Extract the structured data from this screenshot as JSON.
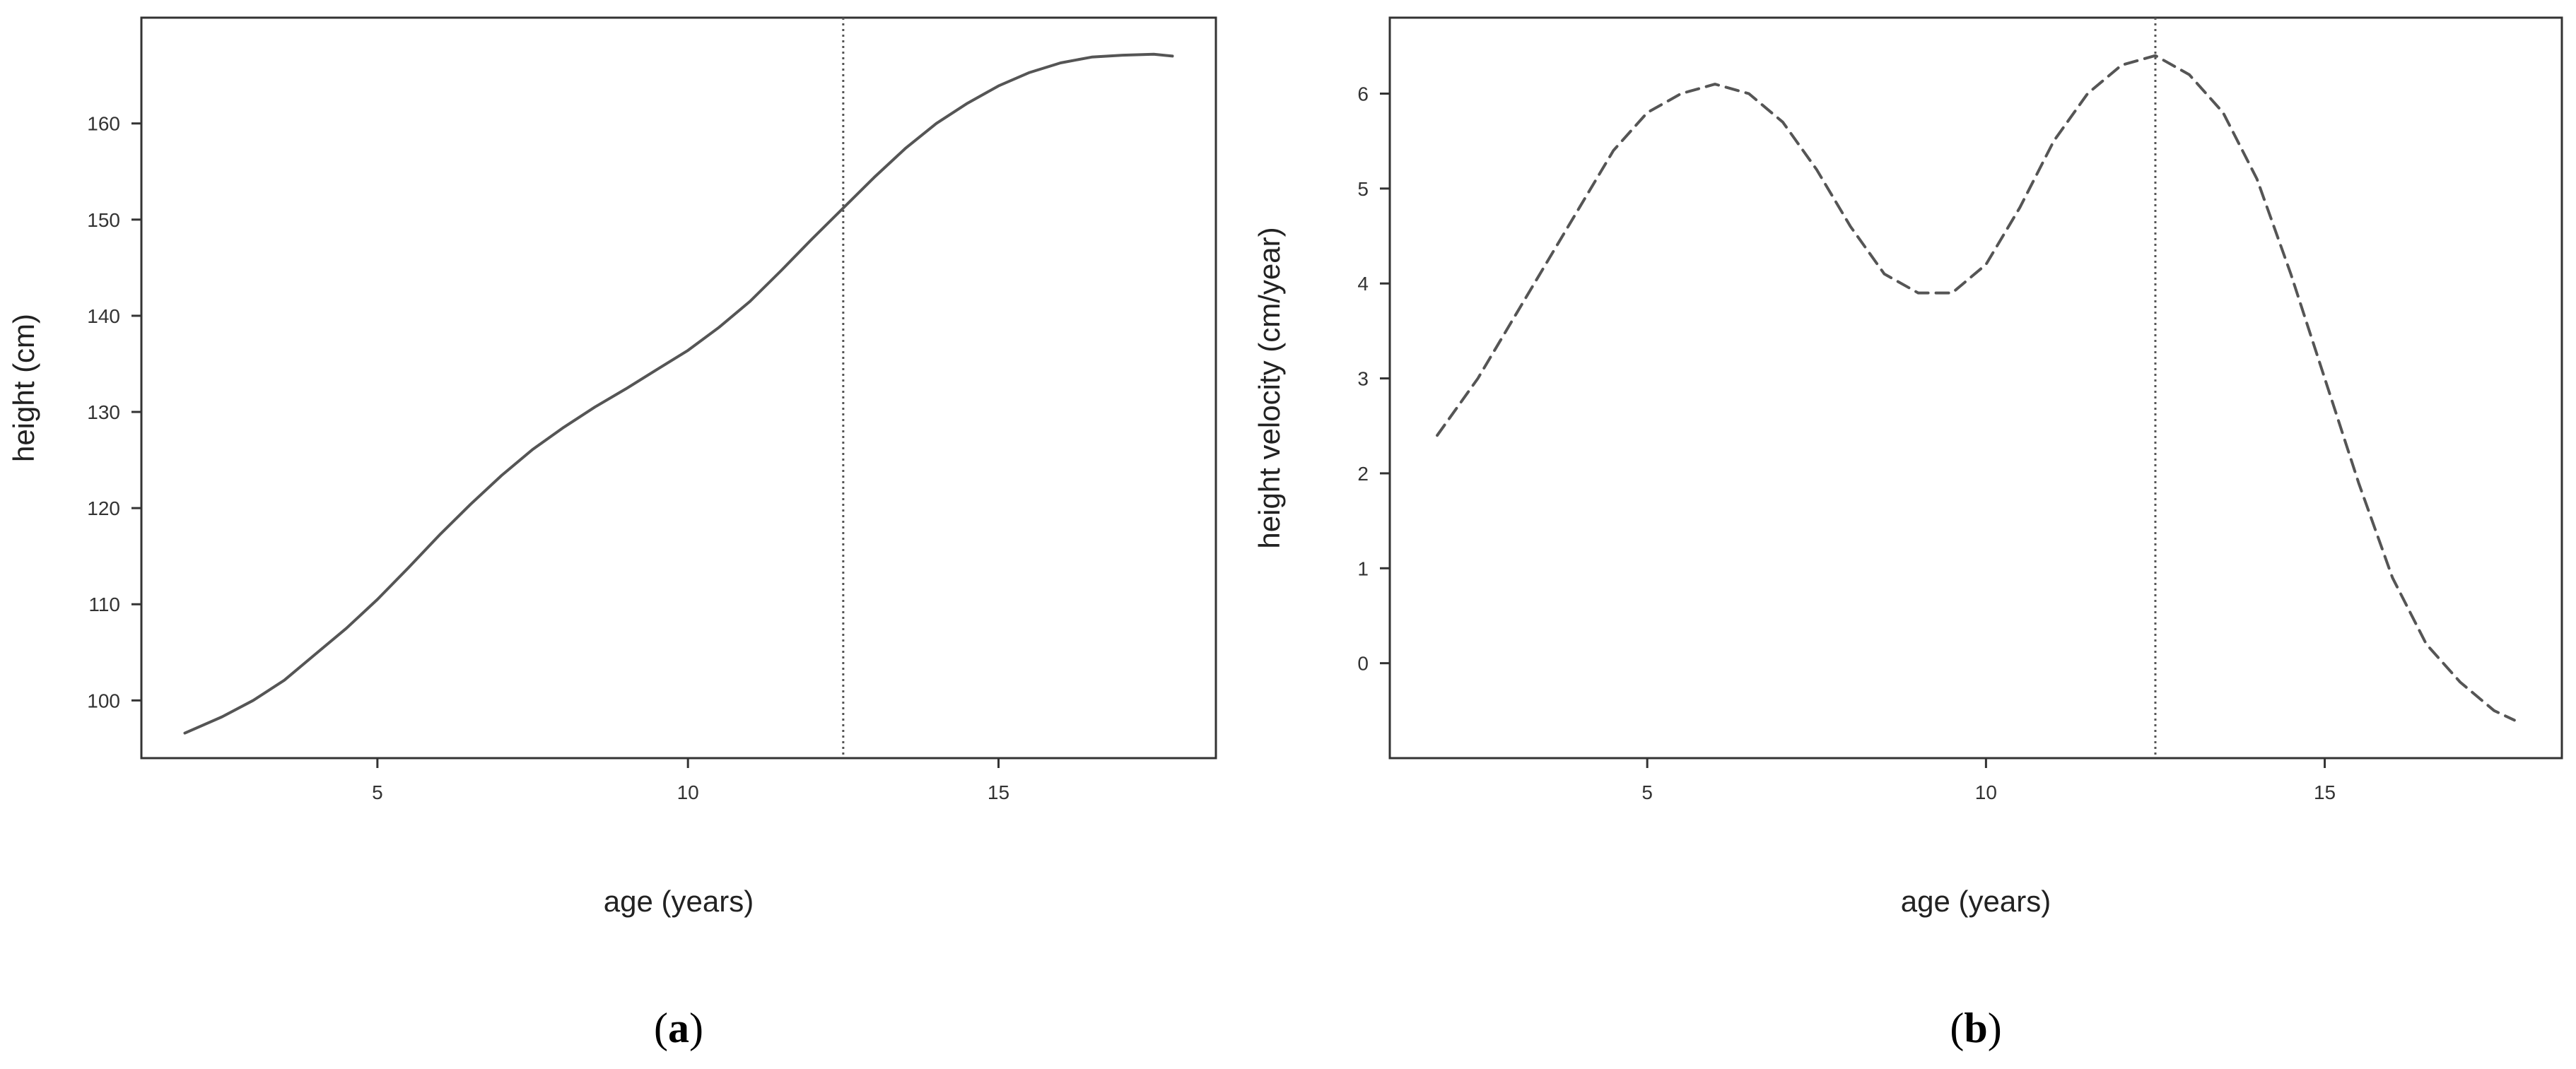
{
  "colors": {
    "line": "#555555",
    "frame": "#333333",
    "marker": "#555555",
    "background": "#ffffff"
  },
  "chart_data": [
    {
      "panel_label": "a",
      "type": "line",
      "xlabel": "age (years)",
      "ylabel": "height (cm)",
      "xlim": [
        1.2,
        18.5
      ],
      "ylim": [
        94,
        171
      ],
      "xticks": [
        5,
        10,
        15
      ],
      "yticks": [
        100,
        110,
        120,
        130,
        140,
        150,
        160
      ],
      "line_style": "solid",
      "grid": false,
      "vline_x": 12.5,
      "vline_style": "dotted",
      "series": [
        {
          "x": [
            1.9,
            2.5,
            3.0,
            3.5,
            4.0,
            4.5,
            5.0,
            5.5,
            6.0,
            6.5,
            7.0,
            7.5,
            8.0,
            8.5,
            9.0,
            9.5,
            10.0,
            10.5,
            11.0,
            11.5,
            12.0,
            12.5,
            13.0,
            13.5,
            14.0,
            14.5,
            15.0,
            15.5,
            16.0,
            16.5,
            17.0,
            17.5,
            17.8
          ],
          "y": [
            96.6,
            98.3,
            100.0,
            102.1,
            104.8,
            107.5,
            110.5,
            113.8,
            117.2,
            120.4,
            123.4,
            126.1,
            128.4,
            130.5,
            132.4,
            134.4,
            136.4,
            138.8,
            141.5,
            144.7,
            148.0,
            151.2,
            154.4,
            157.4,
            160.0,
            162.1,
            163.9,
            165.3,
            166.3,
            166.9,
            167.1,
            167.2,
            167.0
          ]
        }
      ]
    },
    {
      "panel_label": "b",
      "type": "line",
      "xlabel": "age (years)",
      "ylabel": "height velocity (cm/year)",
      "xlim": [
        1.2,
        18.5
      ],
      "ylim": [
        -1.0,
        6.8
      ],
      "xticks": [
        5,
        10,
        15
      ],
      "yticks": [
        0,
        1,
        2,
        3,
        4,
        5,
        6
      ],
      "line_style": "dashed",
      "grid": false,
      "vline_x": 12.5,
      "vline_style": "dotted",
      "series": [
        {
          "x": [
            1.9,
            2.5,
            3.0,
            3.5,
            4.0,
            4.5,
            5.0,
            5.5,
            6.0,
            6.5,
            7.0,
            7.5,
            8.0,
            8.5,
            9.0,
            9.5,
            10.0,
            10.5,
            11.0,
            11.5,
            12.0,
            12.5,
            13.0,
            13.5,
            14.0,
            14.5,
            15.0,
            15.5,
            16.0,
            16.5,
            17.0,
            17.5,
            17.8
          ],
          "y": [
            2.4,
            3.0,
            3.6,
            4.2,
            4.8,
            5.4,
            5.8,
            6.0,
            6.1,
            6.0,
            5.7,
            5.2,
            4.6,
            4.1,
            3.9,
            3.9,
            4.2,
            4.8,
            5.5,
            6.0,
            6.3,
            6.4,
            6.2,
            5.8,
            5.1,
            4.1,
            3.0,
            1.9,
            0.9,
            0.2,
            -0.2,
            -0.5,
            -0.6
          ]
        }
      ]
    }
  ]
}
